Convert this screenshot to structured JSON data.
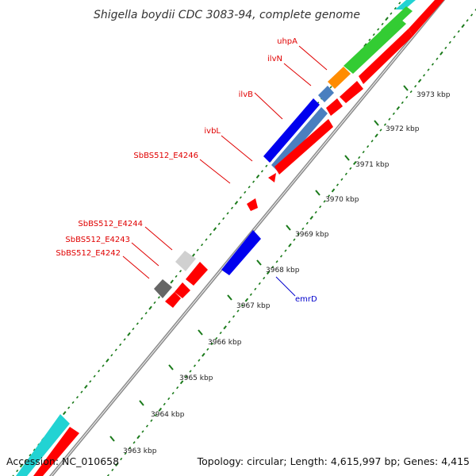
{
  "title": "Shigella boydii CDC 3083-94, complete genome",
  "accession": "Accession: NC_010658",
  "topology": "Topology: circular; Length: 4,615,997 bp; Genes: 4,415",
  "kbp_labels": [
    "3963 kbp",
    "3964 kbp",
    "3965 kbp",
    "3966 kbp",
    "3967 kbp",
    "3968 kbp",
    "3969 kbp",
    "3970 kbp",
    "3971 kbp",
    "3972 kbp",
    "3973 kbp"
  ],
  "gene_labels": {
    "uhpA": "uhpA",
    "ilvN": "ilvN",
    "ilvB": "ilvB",
    "ivbL": "ivbL",
    "sbbs4246": "SbBS512_E4246",
    "sbbs4244": "SbBS512_E4244",
    "sbbs4243": "SbBS512_E4243",
    "sbbs4242": "SbBS512_E4242",
    "emrD": "emrD"
  },
  "colors": {
    "backbone": "#8c8c8c",
    "cds_red": "#ff0000",
    "gene_blue": "#0000ee",
    "steel_blue": "#4a7fbf",
    "green": "#33cc33",
    "orange": "#ff8c00",
    "cyan": "#22d3d3",
    "light_gray": "#d0d0d0",
    "dark_gray": "#666666",
    "tick_green": "#1a7a1a",
    "label_red": "#e00000",
    "label_blue": "#0000cc"
  }
}
